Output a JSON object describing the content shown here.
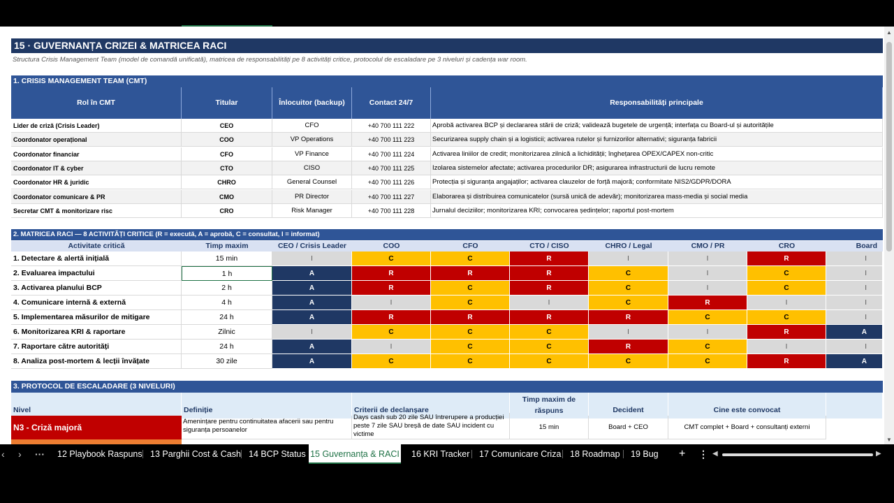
{
  "title": "15 · GUVERNANȚA CRIZEI & MATRICEA RACI",
  "subtitle": "Structura Crisis Management Team (model de comandă unificată), matricea de responsabilități pe 8 activități critice, protocolul de escaladare pe 3 niveluri și cadența war room.",
  "cmt": {
    "section": "1. CRISIS MANAGEMENT TEAM (CMT)",
    "headers": [
      "Rol în CMT",
      "Titular",
      "Înlocuitor (backup)",
      "Contact 24/7",
      "Responsabilități principale"
    ],
    "rows": [
      {
        "rol": "Lider de criză (Crisis Leader)",
        "titular": "CEO",
        "backup": "CFO",
        "contact": "+40 700 111 222",
        "resp": "Aprobă activarea BCP și declararea stării de criză; validează bugetele de urgență; interfața cu Board-ul și autoritățile"
      },
      {
        "rol": "Coordonator operațional",
        "titular": "COO",
        "backup": "VP Operations",
        "contact": "+40 700 111 223",
        "resp": "Securizarea supply chain și a logisticii; activarea rutelor și furnizorilor alternativi; siguranța fabricii"
      },
      {
        "rol": "Coordonator financiar",
        "titular": "CFO",
        "backup": "VP Finance",
        "contact": "+40 700 111 224",
        "resp": "Activarea liniilor de credit; monitorizarea zilnică a lichidității; înghețarea OPEX/CAPEX non-critic"
      },
      {
        "rol": "Coordonator IT & cyber",
        "titular": "CTO",
        "backup": "CISO",
        "contact": "+40 700 111 225",
        "resp": "Izolarea sistemelor afectate; activarea procedurilor DR; asigurarea infrastructurii de lucru remote"
      },
      {
        "rol": "Coordonator HR & juridic",
        "titular": "CHRO",
        "backup": "General Counsel",
        "contact": "+40 700 111 226",
        "resp": "Protecția și siguranța angajaților; activarea clauzelor de forță majoră; conformitate NIS2/GDPR/DORA"
      },
      {
        "rol": "Coordonator comunicare & PR",
        "titular": "CMO",
        "backup": "PR Director",
        "contact": "+40 700 111 227",
        "resp": "Elaborarea și distribuirea comunicatelor (sursă unică de adevăr); monitorizarea mass-media și social media"
      },
      {
        "rol": "Secretar CMT & monitorizare risc",
        "titular": "CRO",
        "backup": "Risk Manager",
        "contact": "+40 700 111 228",
        "resp": "Jurnalul deciziilor; monitorizarea KRI; convocarea ședințelor; raportul post-mortem"
      }
    ]
  },
  "raci": {
    "section": "2. MATRICEA RACI — 8 ACTIVITĂȚI CRITICE (R = execută, A = aprobă, C = consultat, I = informat)",
    "headers": [
      "Activitate critică",
      "Timp maxim",
      "CEO / Crisis Leader",
      "COO",
      "CFO",
      "CTO / CISO",
      "CHRO / Legal",
      "CMO / PR",
      "CRO",
      "Board"
    ],
    "colors": {
      "R": "#c00000",
      "A": "#1f3864",
      "C": "#ffc000",
      "I": "#d9d9d9"
    },
    "rows": [
      {
        "act": "1. Detectare & alertă inițială",
        "time": "15 min",
        "vals": [
          "I",
          "C",
          "C",
          "R",
          "I",
          "I",
          "R",
          "I"
        ]
      },
      {
        "act": "2. Evaluarea impactului",
        "time": "1 h",
        "vals": [
          "A",
          "R",
          "R",
          "R",
          "C",
          "I",
          "C",
          "I"
        ]
      },
      {
        "act": "3. Activarea planului BCP",
        "time": "2 h",
        "vals": [
          "A",
          "R",
          "C",
          "R",
          "C",
          "I",
          "C",
          "I"
        ]
      },
      {
        "act": "4. Comunicare internă & externă",
        "time": "4 h",
        "vals": [
          "A",
          "I",
          "C",
          "I",
          "C",
          "R",
          "I",
          "I"
        ]
      },
      {
        "act": "5. Implementarea măsurilor de mitigare",
        "time": "24 h",
        "vals": [
          "A",
          "R",
          "R",
          "R",
          "R",
          "C",
          "C",
          "I"
        ]
      },
      {
        "act": "6. Monitorizarea KRI & raportare",
        "time": "Zilnic",
        "vals": [
          "I",
          "C",
          "C",
          "C",
          "I",
          "I",
          "R",
          "A"
        ]
      },
      {
        "act": "7. Raportare către autorități",
        "time": "24 h",
        "vals": [
          "A",
          "I",
          "C",
          "C",
          "R",
          "C",
          "I",
          "I"
        ]
      },
      {
        "act": "8. Analiza post-mortem & lecții învățate",
        "time": "30 zile",
        "vals": [
          "A",
          "C",
          "C",
          "C",
          "C",
          "C",
          "R",
          "A"
        ]
      }
    ]
  },
  "esc": {
    "section": "3. PROTOCOL DE ESCALADARE (3 NIVELURI)",
    "headers": [
      "Nivel",
      "Definiție",
      "Criterii de declanșare",
      "Timp maxim de răspuns",
      "Decident",
      "Cine este convocat"
    ],
    "row1": {
      "nivel": "N3 - Criză majoră",
      "def": "Amenințare pentru continuitatea afacerii sau pentru siguranța persoanelor",
      "crit": "Days cash sub 20 zile SAU întrerupere a producției peste 7 zile SAU breșă de date SAU incident cu victime",
      "timp": "15 min",
      "decident": "Board + CEO",
      "convocat": "CMT complet + Board + consultanți externi"
    }
  },
  "tabs": {
    "t12": "12 Playbook Raspuns",
    "t13": "13 Parghii Cost & Cash",
    "t14": "14 BCP Status",
    "t15": "15 Guvernanța & RACI",
    "t16": "16 KRI Tracker",
    "t17": "17 Comunicare Criza",
    "t18": "18 Roadmap",
    "t19": "19 Bug"
  }
}
